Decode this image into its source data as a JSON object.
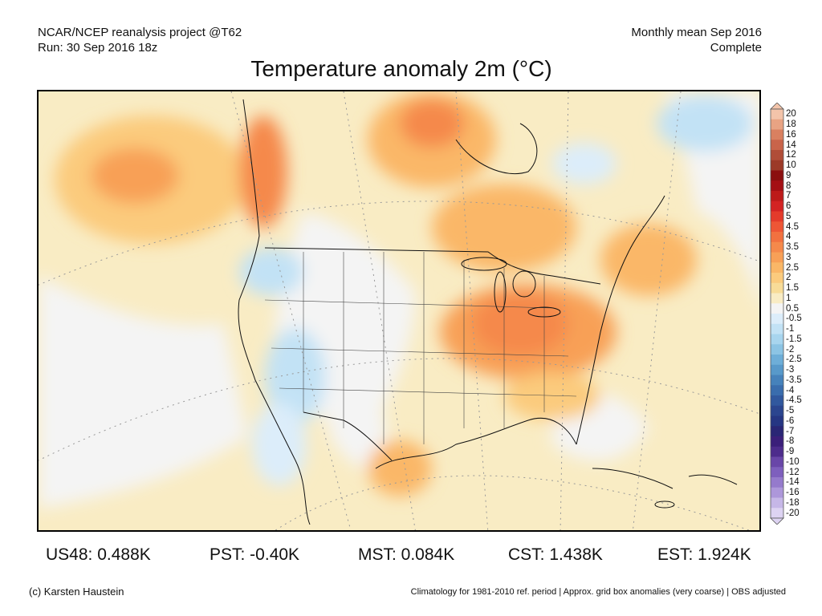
{
  "header": {
    "source_line": "NCAR/NCEP reanalysis project @T62",
    "run_line": "Run: 30 Sep 2016 18z",
    "period_line": "Monthly mean Sep 2016",
    "status_line": "Complete"
  },
  "title": "Temperature anomaly 2m (°C)",
  "colorbar": {
    "labels": [
      "20",
      "18",
      "16",
      "14",
      "12",
      "10",
      "9",
      "8",
      "7",
      "6",
      "5",
      "4.5",
      "4",
      "3.5",
      "3",
      "2.5",
      "2",
      "1.5",
      "1",
      "0.5",
      "-0.5",
      "-1",
      "-1.5",
      "-2",
      "-2.5",
      "-3",
      "-3.5",
      "-4",
      "-4.5",
      "-5",
      "-6",
      "-7",
      "-8",
      "-9",
      "-10",
      "-12",
      "-14",
      "-16",
      "-18",
      "-20"
    ],
    "colors": [
      "#f3c4aa",
      "#e8a383",
      "#d98060",
      "#c9644a",
      "#b04d38",
      "#9c3a28",
      "#8b0f0f",
      "#a40f14",
      "#bd1a1a",
      "#d32323",
      "#e43b2b",
      "#ee5636",
      "#f27140",
      "#f5894b",
      "#f8a057",
      "#fab767",
      "#fbcb7d",
      "#f8dc98",
      "#f9ecc4",
      "#f4f4f4",
      "#dcedfa",
      "#c2e2f5",
      "#a8d5ee",
      "#8cc4e4",
      "#6eaed8",
      "#5899ca",
      "#4682bb",
      "#3a6dad",
      "#31589e",
      "#2b458f",
      "#263683",
      "#2a2675",
      "#3b1f7a",
      "#4d2c8c",
      "#6946a8",
      "#7e5fbd",
      "#957acc",
      "#ad97da",
      "#c6b7e7",
      "#ddd3f2"
    ]
  },
  "stats": {
    "us48": "US48: 0.488K",
    "pst": "PST: -0.40K",
    "mst": "MST: 0.084K",
    "cst": "CST: 1.438K",
    "est": "EST: 1.924K"
  },
  "footer": {
    "credit": "(c) Karsten Haustein",
    "note": "Climatology for 1981-2010 ref. period | Approx. grid box anomalies (very coarse) | OBS adjusted"
  }
}
